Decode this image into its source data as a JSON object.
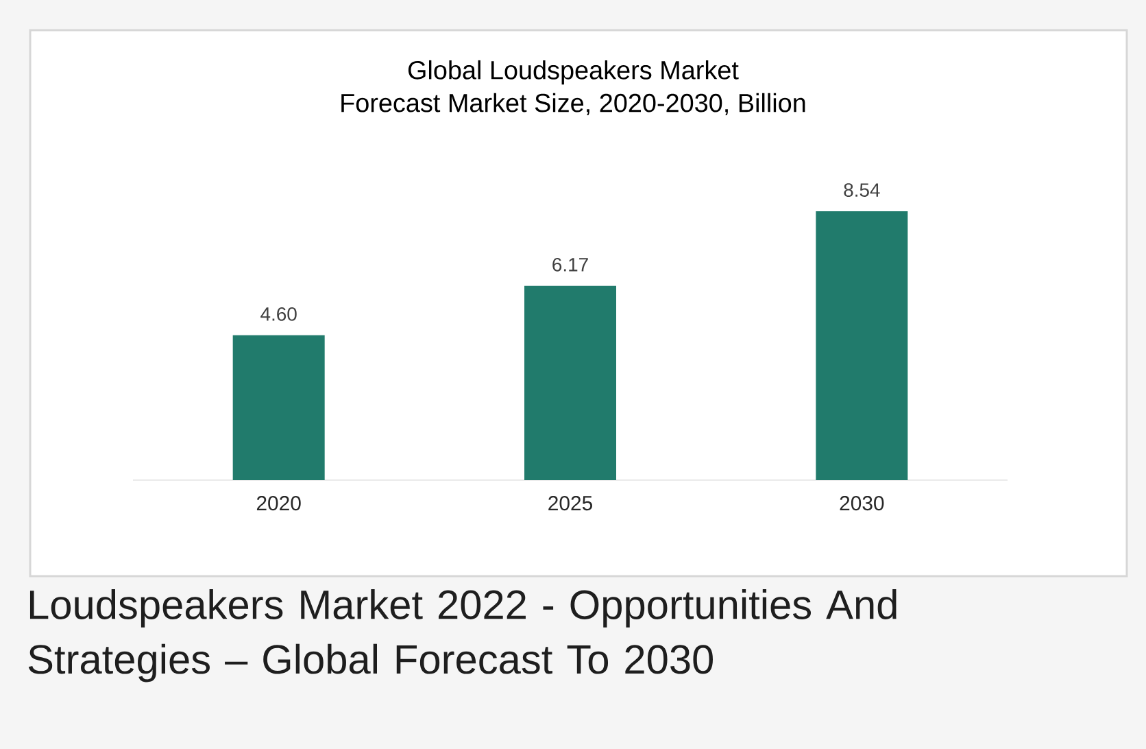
{
  "chart_data": {
    "type": "bar",
    "title": "Global Loudspeakers Market",
    "subtitle": "Forecast Market Size, 2020-2030, Billion",
    "categories": [
      "2020",
      "2025",
      "2030"
    ],
    "values": [
      4.6,
      6.17,
      8.54
    ],
    "value_labels": [
      "4.60",
      "6.17",
      "8.54"
    ],
    "color": "#217b6c",
    "annotations": [
      "Loudspeakers Market 2022 - Opportunities And Strategies – Global Forecast To 2030"
    ]
  }
}
